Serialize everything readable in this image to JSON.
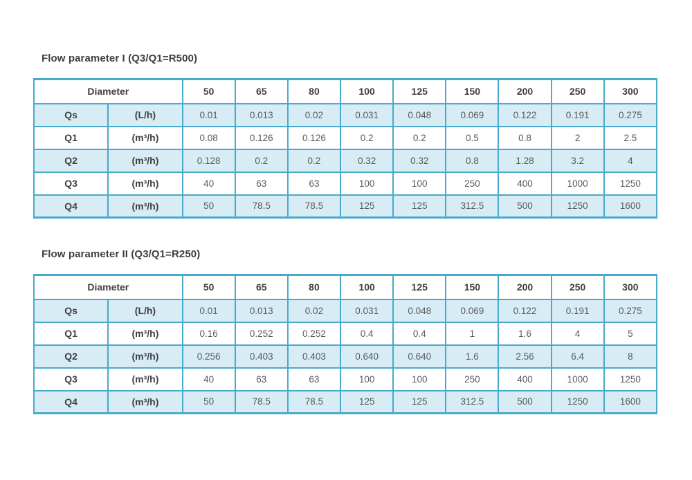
{
  "colors": {
    "border": "#47aacc",
    "row_alt": "#d7ecf5",
    "header_text": "#3f3f3f",
    "cell_text": "#595959",
    "page_bg": "#ffffff"
  },
  "tables": [
    {
      "title": "Flow parameter I (Q3/Q1=R500)",
      "header": {
        "label": "Diameter",
        "columns": [
          "50",
          "65",
          "80",
          "100",
          "125",
          "150",
          "200",
          "250",
          "300"
        ]
      },
      "rows": [
        {
          "name": "Qs",
          "unit": "(L/h)",
          "shaded": true,
          "values": [
            "0.01",
            "0.013",
            "0.02",
            "0.031",
            "0.048",
            "0.069",
            "0.122",
            "0.191",
            "0.275"
          ]
        },
        {
          "name": "Q1",
          "unit": "(m³/h)",
          "shaded": false,
          "values": [
            "0.08",
            "0.126",
            "0.126",
            "0.2",
            "0.2",
            "0.5",
            "0.8",
            "2",
            "2.5"
          ]
        },
        {
          "name": "Q2",
          "unit": "(m³/h)",
          "shaded": true,
          "values": [
            "0.128",
            "0.2",
            "0.2",
            "0.32",
            "0.32",
            "0.8",
            "1.28",
            "3.2",
            "4"
          ]
        },
        {
          "name": "Q3",
          "unit": "(m³/h)",
          "shaded": false,
          "values": [
            "40",
            "63",
            "63",
            "100",
            "100",
            "250",
            "400",
            "1000",
            "1250"
          ]
        },
        {
          "name": "Q4",
          "unit": "(m³/h)",
          "shaded": true,
          "values": [
            "50",
            "78.5",
            "78.5",
            "125",
            "125",
            "312.5",
            "500",
            "1250",
            "1600"
          ]
        }
      ]
    },
    {
      "title": "Flow parameter II (Q3/Q1=R250)",
      "header": {
        "label": "Diameter",
        "columns": [
          "50",
          "65",
          "80",
          "100",
          "125",
          "150",
          "200",
          "250",
          "300"
        ]
      },
      "rows": [
        {
          "name": "Qs",
          "unit": "(L/h)",
          "shaded": true,
          "values": [
            "0.01",
            "0.013",
            "0.02",
            "0.031",
            "0.048",
            "0.069",
            "0.122",
            "0.191",
            "0.275"
          ]
        },
        {
          "name": "Q1",
          "unit": "(m³/h)",
          "shaded": false,
          "values": [
            "0.16",
            "0.252",
            "0.252",
            "0.4",
            "0.4",
            "1",
            "1.6",
            "4",
            "5"
          ]
        },
        {
          "name": "Q2",
          "unit": "(m³/h)",
          "shaded": true,
          "values": [
            "0.256",
            "0.403",
            "0.403",
            "0.640",
            "0.640",
            "1.6",
            "2.56",
            "6.4",
            "8"
          ]
        },
        {
          "name": "Q3",
          "unit": "(m³/h)",
          "shaded": false,
          "values": [
            "40",
            "63",
            "63",
            "100",
            "100",
            "250",
            "400",
            "1000",
            "1250"
          ]
        },
        {
          "name": "Q4",
          "unit": "(m³/h)",
          "shaded": true,
          "values": [
            "50",
            "78.5",
            "78.5",
            "125",
            "125",
            "312.5",
            "500",
            "1250",
            "1600"
          ]
        }
      ]
    }
  ]
}
